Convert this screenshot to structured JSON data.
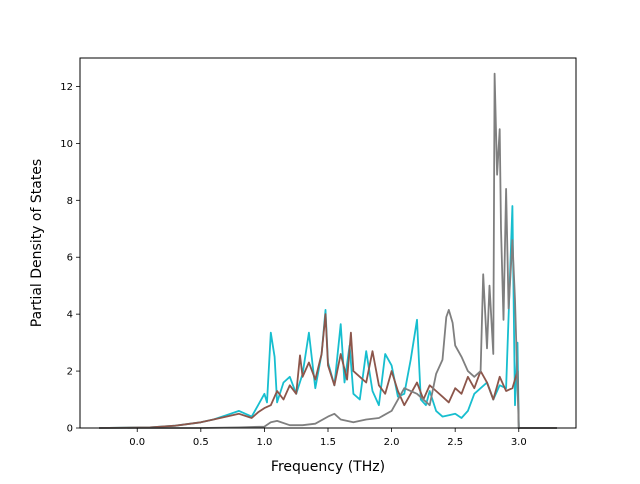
{
  "chart_data": {
    "type": "line",
    "title": "",
    "xlabel": "Frequency (THz)",
    "ylabel": "Partial Density of States",
    "xlim": [
      -0.45,
      3.45
    ],
    "ylim": [
      0,
      13
    ],
    "xticks": [
      0.0,
      0.5,
      1.0,
      1.5,
      2.0,
      2.5,
      3.0
    ],
    "xtick_labels": [
      "0.0",
      "0.5",
      "1.0",
      "1.5",
      "2.0",
      "2.5",
      "3.0"
    ],
    "yticks": [
      0,
      2,
      4,
      6,
      8,
      10,
      12
    ],
    "ytick_labels": [
      "0",
      "2",
      "4",
      "6",
      "8",
      "10",
      "12"
    ],
    "grid": false,
    "legend": "none",
    "series": [
      {
        "color": "#17becf",
        "x": [
          -0.3,
          0.1,
          0.3,
          0.5,
          0.6,
          0.7,
          0.8,
          0.9,
          0.95,
          1.0,
          1.02,
          1.05,
          1.08,
          1.1,
          1.15,
          1.2,
          1.25,
          1.3,
          1.35,
          1.4,
          1.45,
          1.48,
          1.5,
          1.55,
          1.6,
          1.63,
          1.67,
          1.7,
          1.75,
          1.8,
          1.85,
          1.9,
          1.95,
          2.0,
          2.05,
          2.1,
          2.15,
          2.2,
          2.23,
          2.27,
          2.3,
          2.35,
          2.4,
          2.45,
          2.5,
          2.55,
          2.6,
          2.65,
          2.7,
          2.75,
          2.8,
          2.85,
          2.9,
          2.95,
          2.97,
          2.99,
          3.0,
          3.3
        ],
        "y": [
          0,
          0.02,
          0.08,
          0.2,
          0.3,
          0.45,
          0.6,
          0.4,
          0.8,
          1.2,
          0.9,
          3.35,
          2.5,
          0.9,
          1.6,
          1.8,
          1.2,
          1.9,
          3.35,
          1.4,
          2.6,
          4.15,
          2.3,
          1.5,
          3.65,
          1.6,
          2.9,
          1.2,
          1.0,
          2.7,
          1.3,
          0.8,
          2.6,
          2.2,
          1.1,
          1.2,
          2.4,
          3.8,
          1.0,
          0.8,
          1.3,
          0.6,
          0.4,
          0.45,
          0.5,
          0.35,
          0.6,
          1.2,
          1.4,
          1.6,
          1.0,
          1.5,
          1.4,
          7.8,
          0.8,
          3.0,
          0,
          0
        ]
      },
      {
        "color": "#8c564b",
        "x": [
          -0.3,
          0.1,
          0.3,
          0.5,
          0.6,
          0.7,
          0.8,
          0.9,
          0.95,
          1.0,
          1.05,
          1.1,
          1.15,
          1.2,
          1.25,
          1.28,
          1.3,
          1.35,
          1.4,
          1.45,
          1.48,
          1.5,
          1.55,
          1.6,
          1.65,
          1.68,
          1.7,
          1.75,
          1.8,
          1.85,
          1.9,
          1.95,
          2.0,
          2.05,
          2.1,
          2.15,
          2.2,
          2.25,
          2.3,
          2.35,
          2.4,
          2.45,
          2.5,
          2.55,
          2.6,
          2.65,
          2.7,
          2.75,
          2.8,
          2.85,
          2.9,
          2.95,
          2.99,
          3.0,
          3.3
        ],
        "y": [
          0,
          0.02,
          0.08,
          0.2,
          0.3,
          0.4,
          0.5,
          0.35,
          0.55,
          0.7,
          0.8,
          1.3,
          1.0,
          1.5,
          1.2,
          2.55,
          1.8,
          2.3,
          1.7,
          2.6,
          4.0,
          2.2,
          1.5,
          2.6,
          1.7,
          3.35,
          2.0,
          1.8,
          1.6,
          2.7,
          1.5,
          1.2,
          2.0,
          1.3,
          0.8,
          1.2,
          1.6,
          1.0,
          1.5,
          1.3,
          1.1,
          0.9,
          1.4,
          1.2,
          1.8,
          1.4,
          2.0,
          1.6,
          1.0,
          1.8,
          1.3,
          1.4,
          2.0,
          0,
          0
        ]
      },
      {
        "color": "#7f7f7f",
        "x": [
          -0.3,
          0.5,
          0.8,
          1.0,
          1.05,
          1.1,
          1.2,
          1.3,
          1.4,
          1.5,
          1.55,
          1.6,
          1.7,
          1.8,
          1.9,
          2.0,
          2.1,
          2.2,
          2.3,
          2.35,
          2.4,
          2.43,
          2.45,
          2.48,
          2.5,
          2.55,
          2.6,
          2.65,
          2.7,
          2.72,
          2.75,
          2.77,
          2.8,
          2.81,
          2.83,
          2.85,
          2.86,
          2.88,
          2.9,
          2.92,
          2.95,
          2.97,
          3.0,
          3.3
        ],
        "y": [
          0,
          0,
          0.02,
          0.05,
          0.2,
          0.25,
          0.1,
          0.1,
          0.15,
          0.4,
          0.5,
          0.3,
          0.2,
          0.3,
          0.35,
          0.6,
          1.4,
          1.2,
          0.8,
          1.9,
          2.4,
          3.9,
          4.15,
          3.7,
          2.9,
          2.5,
          2.0,
          1.8,
          2.0,
          5.4,
          2.8,
          5.0,
          2.6,
          12.45,
          8.9,
          10.5,
          7.0,
          3.8,
          8.4,
          4.2,
          6.6,
          4.5,
          0,
          0
        ]
      }
    ]
  }
}
